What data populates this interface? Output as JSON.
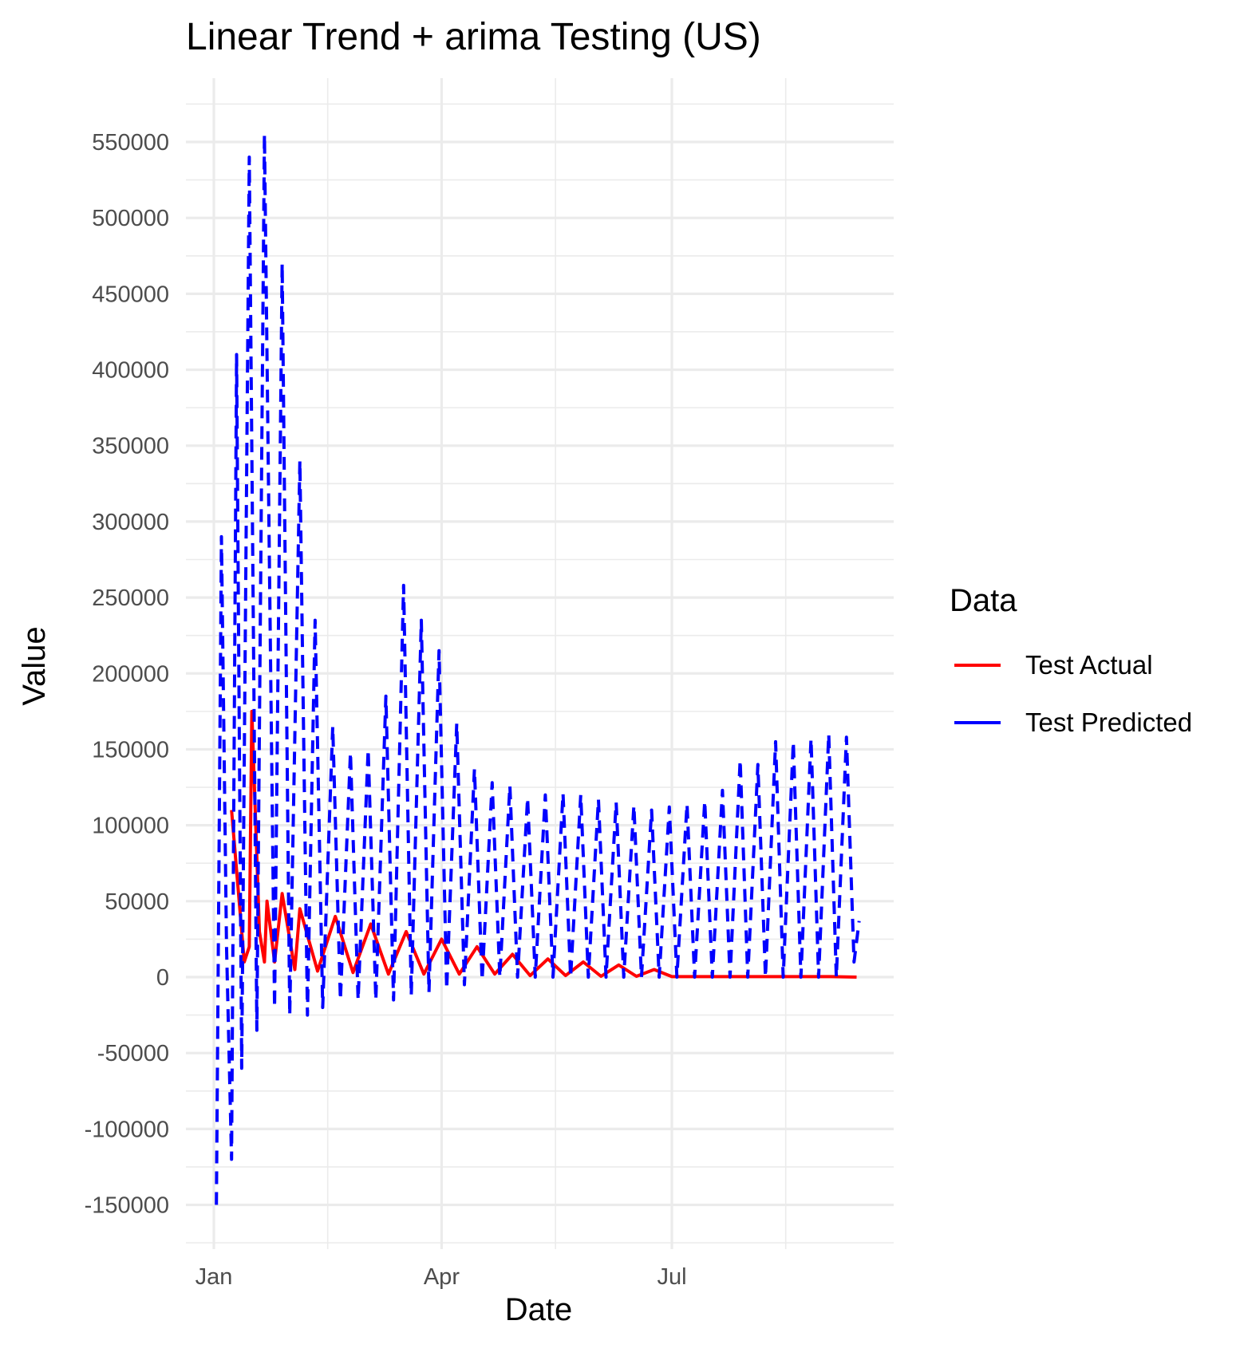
{
  "chart_data": {
    "type": "line",
    "title": "Linear Trend + arima Testing (US)",
    "xlabel": "Date",
    "ylabel": "Value",
    "x_tick_labels": [
      "Jan",
      "Apr",
      "Jul"
    ],
    "x_ticks": [
      {
        "label": "Jan",
        "date": "2021-01-01"
      },
      {
        "label": "Apr",
        "date": "2021-04-01"
      },
      {
        "label": "Jul",
        "date": "2021-07-01"
      }
    ],
    "x_range": [
      "2020-12-23",
      "2021-09-15"
    ],
    "ylim": [
      -180000,
      590000
    ],
    "y_ticks": [
      -150000,
      -100000,
      -50000,
      0,
      50000,
      100000,
      150000,
      200000,
      250000,
      300000,
      350000,
      400000,
      450000,
      500000,
      550000
    ],
    "y_tick_labels": [
      "-150000",
      "-100000",
      "-50000",
      "0",
      "50000",
      "100000",
      "150000",
      "200000",
      "250000",
      "300000",
      "350000",
      "400000",
      "450000",
      "500000",
      "550000"
    ],
    "grid": true,
    "legend": {
      "title": "Data",
      "position": "right",
      "entries": [
        "Test Actual",
        "Test Predicted"
      ]
    },
    "series": [
      {
        "name": "Test Actual",
        "color": "#ff0000",
        "style": "solid",
        "points": [
          [
            "2021-01-08",
            110000
          ],
          [
            "2021-01-13",
            10000
          ],
          [
            "2021-01-15",
            20000
          ],
          [
            "2021-01-16",
            175000
          ],
          [
            "2021-01-19",
            30000
          ],
          [
            "2021-01-21",
            10000
          ],
          [
            "2021-01-22",
            50000
          ],
          [
            "2021-01-25",
            10000
          ],
          [
            "2021-01-28",
            55000
          ],
          [
            "2021-02-02",
            5000
          ],
          [
            "2021-02-04",
            45000
          ],
          [
            "2021-02-11",
            4000
          ],
          [
            "2021-02-18",
            40000
          ],
          [
            "2021-02-25",
            3000
          ],
          [
            "2021-03-04",
            35000
          ],
          [
            "2021-03-11",
            2000
          ],
          [
            "2021-03-18",
            30000
          ],
          [
            "2021-03-25",
            2000
          ],
          [
            "2021-04-01",
            25000
          ],
          [
            "2021-04-08",
            2000
          ],
          [
            "2021-04-15",
            20000
          ],
          [
            "2021-04-22",
            2000
          ],
          [
            "2021-04-29",
            15000
          ],
          [
            "2021-05-06",
            1000
          ],
          [
            "2021-05-13",
            12000
          ],
          [
            "2021-05-20",
            1000
          ],
          [
            "2021-05-27",
            10000
          ],
          [
            "2021-06-03",
            500
          ],
          [
            "2021-06-10",
            8000
          ],
          [
            "2021-06-17",
            500
          ],
          [
            "2021-06-24",
            5000
          ],
          [
            "2021-07-01",
            300
          ],
          [
            "2021-07-08",
            300
          ],
          [
            "2021-07-22",
            300
          ],
          [
            "2021-08-05",
            300
          ],
          [
            "2021-08-19",
            300
          ],
          [
            "2021-09-02",
            300
          ],
          [
            "2021-09-12",
            0
          ]
        ]
      },
      {
        "name": "Test Predicted",
        "color": "#0000ff",
        "style": "dashed",
        "points": [
          [
            "2021-01-02",
            -150000
          ],
          [
            "2021-01-04",
            290000
          ],
          [
            "2021-01-06",
            20000
          ],
          [
            "2021-01-08",
            -120000
          ],
          [
            "2021-01-10",
            410000
          ],
          [
            "2021-01-12",
            -60000
          ],
          [
            "2021-01-15",
            540000
          ],
          [
            "2021-01-18",
            -35000
          ],
          [
            "2021-01-21",
            555000
          ],
          [
            "2021-01-25",
            -20000
          ],
          [
            "2021-01-28",
            470000
          ],
          [
            "2021-01-31",
            -25000
          ],
          [
            "2021-02-04",
            340000
          ],
          [
            "2021-02-07",
            -25000
          ],
          [
            "2021-02-10",
            235000
          ],
          [
            "2021-02-13",
            -20000
          ],
          [
            "2021-02-17",
            165000
          ],
          [
            "2021-02-20",
            -15000
          ],
          [
            "2021-02-24",
            148000
          ],
          [
            "2021-02-27",
            -15000
          ],
          [
            "2021-03-03",
            150000
          ],
          [
            "2021-03-06",
            -15000
          ],
          [
            "2021-03-10",
            185000
          ],
          [
            "2021-03-13",
            -15000
          ],
          [
            "2021-03-17",
            258000
          ],
          [
            "2021-03-20",
            -12000
          ],
          [
            "2021-03-24",
            235000
          ],
          [
            "2021-03-27",
            -10000
          ],
          [
            "2021-03-31",
            215000
          ],
          [
            "2021-04-03",
            -8000
          ],
          [
            "2021-04-07",
            167000
          ],
          [
            "2021-04-10",
            -5000
          ],
          [
            "2021-04-14",
            137000
          ],
          [
            "2021-04-17",
            -2000
          ],
          [
            "2021-04-21",
            128000
          ],
          [
            "2021-04-24",
            0
          ],
          [
            "2021-04-28",
            126000
          ],
          [
            "2021-05-01",
            0
          ],
          [
            "2021-05-05",
            118000
          ],
          [
            "2021-05-08",
            0
          ],
          [
            "2021-05-12",
            120000
          ],
          [
            "2021-05-15",
            0
          ],
          [
            "2021-05-19",
            121000
          ],
          [
            "2021-05-22",
            0
          ],
          [
            "2021-05-26",
            120000
          ],
          [
            "2021-05-29",
            0
          ],
          [
            "2021-06-02",
            117000
          ],
          [
            "2021-06-05",
            0
          ],
          [
            "2021-06-09",
            115000
          ],
          [
            "2021-06-12",
            0
          ],
          [
            "2021-06-16",
            113000
          ],
          [
            "2021-06-19",
            0
          ],
          [
            "2021-06-23",
            110000
          ],
          [
            "2021-06-26",
            0
          ],
          [
            "2021-06-30",
            112000
          ],
          [
            "2021-07-03",
            0
          ],
          [
            "2021-07-07",
            114000
          ],
          [
            "2021-07-10",
            0
          ],
          [
            "2021-07-14",
            116000
          ],
          [
            "2021-07-17",
            0
          ],
          [
            "2021-07-21",
            123000
          ],
          [
            "2021-07-24",
            0
          ],
          [
            "2021-07-28",
            143000
          ],
          [
            "2021-07-31",
            0
          ],
          [
            "2021-08-04",
            140000
          ],
          [
            "2021-08-07",
            0
          ],
          [
            "2021-08-11",
            155000
          ],
          [
            "2021-08-14",
            0
          ],
          [
            "2021-08-18",
            155000
          ],
          [
            "2021-08-21",
            0
          ],
          [
            "2021-08-25",
            157000
          ],
          [
            "2021-08-28",
            0
          ],
          [
            "2021-09-01",
            160000
          ],
          [
            "2021-09-04",
            0
          ],
          [
            "2021-09-08",
            158000
          ],
          [
            "2021-09-11",
            10000
          ],
          [
            "2021-09-13",
            37000
          ]
        ]
      }
    ]
  }
}
